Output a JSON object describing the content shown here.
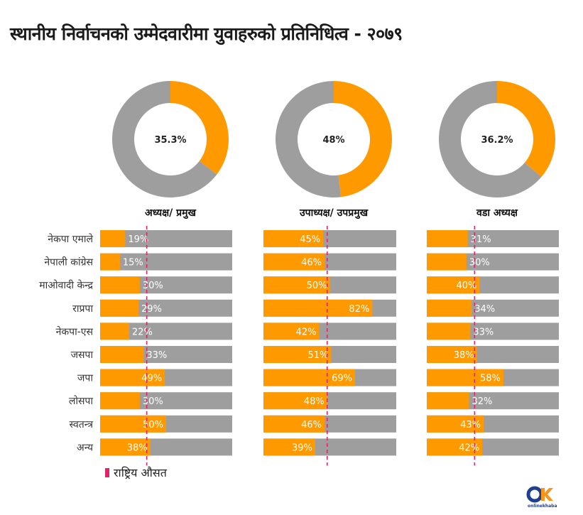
{
  "title": "स्थानीय निर्वाचनको उम्मेदवारीमा युवाहरुको प्रतिनिधित्व - २०७९",
  "colors": {
    "highlight": "#ff9900",
    "base": "#9e9e9e",
    "average_marker": "#e0246a",
    "logo_blue": "#1f3f8f",
    "logo_orange": "#f7941d"
  },
  "legend": {
    "label": "राष्ट्रिय औसत"
  },
  "logo": {
    "text": "OK",
    "caption": "onlinekhabar"
  },
  "chart_data": [
    {
      "type": "bar",
      "position_title": "अध्यक्ष/ प्रमुख",
      "overall_share_label": "35.3%",
      "overall_share": 35.3,
      "national_average": 35.3,
      "xlim": [
        0,
        100
      ],
      "categories": [
        "नेकपा एमाले",
        "नेपाली कांग्रेस",
        "माओवादी केन्द्र",
        "राप्रपा",
        "नेकपा-एस",
        "जसपा",
        "जपा",
        "लोसपा",
        "स्वतन्त्र",
        "अन्य"
      ],
      "labels": [
        "19%",
        "15%",
        "30%",
        "29%",
        "22%",
        "33%",
        "49%",
        "30%",
        "50%",
        "38%"
      ],
      "values": [
        19,
        15,
        30,
        29,
        22,
        33,
        49,
        30,
        50,
        38
      ]
    },
    {
      "type": "bar",
      "position_title": "उपाध्यक्ष/ उपप्रमुख",
      "overall_share_label": "48%",
      "overall_share": 48,
      "national_average": 48,
      "xlim": [
        0,
        100
      ],
      "categories": [
        "नेकपा एमाले",
        "नेपाली कांग्रेस",
        "माओवादी केन्द्र",
        "राप्रपा",
        "नेकपा-एस",
        "जसपा",
        "जपा",
        "लोसपा",
        "स्वतन्त्र",
        "अन्य"
      ],
      "labels": [
        "45%",
        "46%",
        "50%",
        "82%",
        "42%",
        "51%",
        "69%",
        "48%",
        "46%",
        "39%"
      ],
      "values": [
        45,
        46,
        50,
        82,
        42,
        51,
        69,
        48,
        46,
        39
      ]
    },
    {
      "type": "bar",
      "position_title": "वडा अध्यक्ष",
      "overall_share_label": "36.2%",
      "overall_share": 36.2,
      "national_average": 36.2,
      "xlim": [
        0,
        100
      ],
      "categories": [
        "नेकपा एमाले",
        "नेपाली कांग्रेस",
        "माओवादी केन्द्र",
        "राप्रपा",
        "नेकपा-एस",
        "जसपा",
        "जपा",
        "लोसपा",
        "स्वतन्त्र",
        "अन्य"
      ],
      "labels": [
        "31%",
        "30%",
        "40%",
        "34%",
        "33%",
        "38%",
        "58%",
        "32%",
        "43%",
        "42%"
      ],
      "values": [
        31,
        30,
        40,
        34,
        33,
        38,
        58,
        32,
        43,
        42
      ]
    }
  ]
}
